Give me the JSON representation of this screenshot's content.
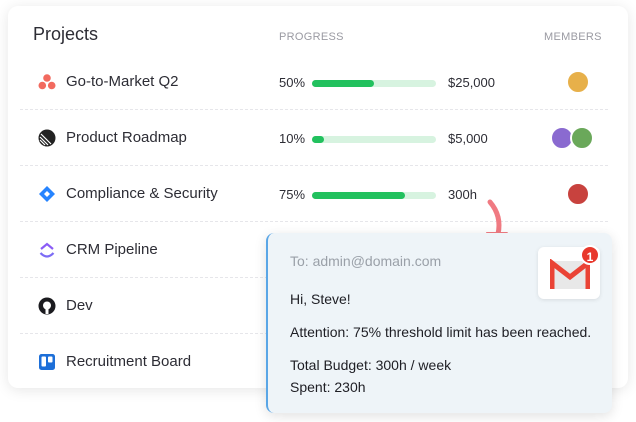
{
  "header": {
    "title": "Projects",
    "progress_label": "PROGRESS",
    "members_label": "MEMBERS"
  },
  "projects": [
    {
      "name": "Go-to-Market Q2",
      "icon": "asana-icon",
      "progress": "50%",
      "fraction": 0.5,
      "value": "$25,000"
    },
    {
      "name": "Product Roadmap",
      "icon": "linear-icon",
      "progress": "10%",
      "fraction": 0.1,
      "value": "$5,000"
    },
    {
      "name": "Compliance & Security",
      "icon": "jira-icon",
      "progress": "75%",
      "fraction": 0.75,
      "value": "300h"
    },
    {
      "name": "CRM Pipeline",
      "icon": "clickup-icon"
    },
    {
      "name": "Dev",
      "icon": "github-icon"
    },
    {
      "name": "Recruitment Board",
      "icon": "trello-icon"
    }
  ],
  "email": {
    "to": "To: admin@domain.com",
    "greeting": "Hi, Steve!",
    "attention": "Attention: 75% threshold limit has been reached.",
    "budget": "Total Budget: 300h / week",
    "spent": "Spent: 230h",
    "badge": "1",
    "icon": "gmail-icon"
  },
  "colors": {
    "progress": "#22c15e",
    "track": "#d7f3e0",
    "arrow": "#f07a82"
  }
}
